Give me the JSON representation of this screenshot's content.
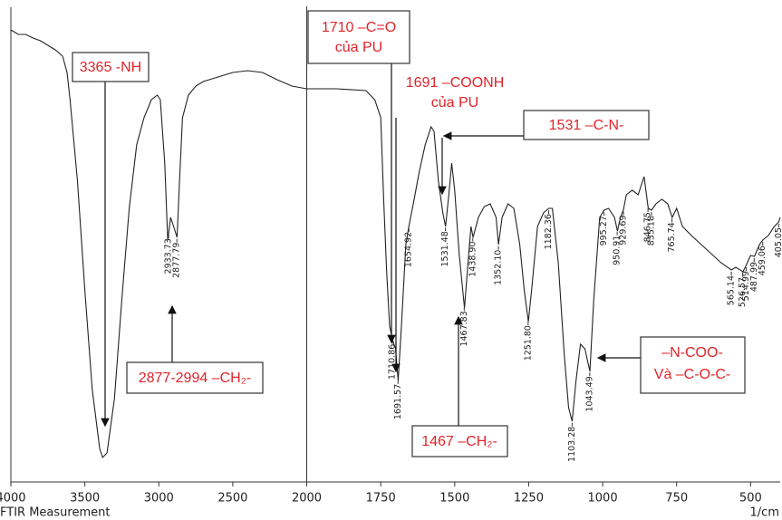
{
  "chart_data": {
    "type": "line",
    "color": "#222222",
    "footer": "FTIR Measurement",
    "x_axis_label": "1/cm",
    "xlim": [
      4000,
      400
    ],
    "x_scale_break": 2000,
    "ylim": [
      0,
      105
    ],
    "xticks": [
      4000,
      3500,
      3000,
      2500,
      2000,
      1750,
      1500,
      1250,
      1000,
      750,
      500
    ],
    "x": [
      4000,
      3950,
      3900,
      3850,
      3800,
      3750,
      3700,
      3650,
      3620,
      3600,
      3550,
      3500,
      3450,
      3400,
      3380,
      3350,
      3300,
      3250,
      3200,
      3150,
      3100,
      3050,
      3010,
      2990,
      2960,
      2940,
      2920,
      2900,
      2877,
      2860,
      2840,
      2800,
      2750,
      2700,
      2600,
      2500,
      2400,
      2300,
      2200,
      2100,
      2000,
      1900,
      1800,
      1770,
      1750,
      1740,
      1730,
      1720,
      1710,
      1700,
      1691,
      1680,
      1665,
      1655,
      1640,
      1620,
      1600,
      1580,
      1570,
      1555,
      1540,
      1531,
      1520,
      1510,
      1500,
      1485,
      1467,
      1455,
      1445,
      1438,
      1420,
      1400,
      1380,
      1360,
      1352,
      1340,
      1320,
      1300,
      1280,
      1265,
      1251,
      1240,
      1220,
      1200,
      1182,
      1170,
      1150,
      1130,
      1115,
      1103,
      1090,
      1075,
      1060,
      1043,
      1030,
      1010,
      995,
      980,
      960,
      950,
      940,
      930,
      920,
      900,
      880,
      870,
      860,
      846,
      835,
      820,
      800,
      780,
      765,
      750,
      730,
      700,
      650,
      600,
      565,
      550,
      526,
      515,
      500,
      487,
      470,
      459,
      440,
      420,
      405,
      400
    ],
    "values": [
      99.8,
      98.8,
      98.8,
      98,
      97.4,
      96.4,
      95.4,
      94,
      90.4,
      84.4,
      66.4,
      42.4,
      20.4,
      7.4,
      5.4,
      6.4,
      18.4,
      40.4,
      60.4,
      74.4,
      80.4,
      84.4,
      85.4,
      84.4,
      70.4,
      53.4,
      58.4,
      56.4,
      54,
      66.4,
      80.4,
      85.4,
      87.4,
      88.4,
      89.4,
      90.4,
      90.8,
      90.4,
      88.8,
      87.4,
      86.8,
      86.8,
      86.4,
      84.4,
      80.4,
      62.4,
      46.4,
      34.4,
      31.4,
      29.4,
      22.4,
      34.4,
      52.4,
      56.4,
      61.4,
      68.4,
      74.4,
      78.4,
      77.4,
      66.4,
      59.4,
      56.4,
      63.4,
      70.4,
      64.4,
      50.4,
      38.4,
      48.4,
      56.4,
      54,
      58.4,
      60.8,
      61.4,
      58.4,
      52.4,
      58.4,
      61.4,
      60.4,
      52.4,
      42.4,
      35.4,
      42.4,
      56.4,
      59.4,
      60.4,
      60.4,
      48.4,
      28.4,
      16.4,
      13.4,
      22.4,
      30.4,
      29.4,
      24.4,
      40.4,
      58.4,
      60,
      60.4,
      58.4,
      55.4,
      58.4,
      60,
      63.4,
      64.4,
      63.4,
      65.4,
      67.4,
      60.4,
      60,
      61.4,
      62.4,
      61.4,
      58.4,
      60.4,
      56.4,
      54.4,
      51.4,
      48.4,
      46.8,
      47.4,
      46.4,
      47.8,
      50,
      49.8,
      52.4,
      53.4,
      54.4,
      56.4,
      57.4,
      58.4
    ],
    "peaks": [
      {
        "value": 2933.73,
        "label": "2933.73"
      },
      {
        "value": 2877.79,
        "label": "2877.79"
      },
      {
        "value": 1710.86,
        "label": "1710.86"
      },
      {
        "value": 1691.57,
        "label": "1691.57"
      },
      {
        "value": 1654.92,
        "label": "1654.92"
      },
      {
        "value": 1531.48,
        "label": "1531.48"
      },
      {
        "value": 1467.83,
        "label": "1467.83"
      },
      {
        "value": 1438.9,
        "label": "1438.90"
      },
      {
        "value": 1352.1,
        "label": "1352.10"
      },
      {
        "value": 1251.8,
        "label": "1251.80"
      },
      {
        "value": 1182.36,
        "label": "1182.36"
      },
      {
        "value": 1103.28,
        "label": "1103.28"
      },
      {
        "value": 1043.49,
        "label": "1043.49"
      },
      {
        "value": 995.27,
        "label": "995.27"
      },
      {
        "value": 950.91,
        "label": "950.91"
      },
      {
        "value": 929.69,
        "label": "929.69"
      },
      {
        "value": 846.75,
        "label": "846.75"
      },
      {
        "value": 835.18,
        "label": "835.18"
      },
      {
        "value": 765.74,
        "label": "765.74"
      },
      {
        "value": 565.14,
        "label": "565.14"
      },
      {
        "value": 526.57,
        "label": "526.57"
      },
      {
        "value": 514.99,
        "label": "514.99"
      },
      {
        "value": 487.99,
        "label": "487.99"
      },
      {
        "value": 459.06,
        "label": "459.06"
      },
      {
        "value": 405.05,
        "label": "405.05"
      }
    ],
    "annotations": [
      {
        "lines": [
          "3365 -NH"
        ]
      },
      {
        "lines": [
          "2877-2994 –CH₂-"
        ]
      },
      {
        "lines": [
          "1710 –C=O",
          "của PU"
        ]
      },
      {
        "lines": [
          "1691 –COONH",
          "của PU"
        ]
      },
      {
        "lines": [
          "1531 –C-N-"
        ]
      },
      {
        "lines": [
          "1467 –CH₂-"
        ]
      },
      {
        "lines": [
          "–N-COO-",
          "Và –C-O-C-"
        ]
      }
    ]
  }
}
